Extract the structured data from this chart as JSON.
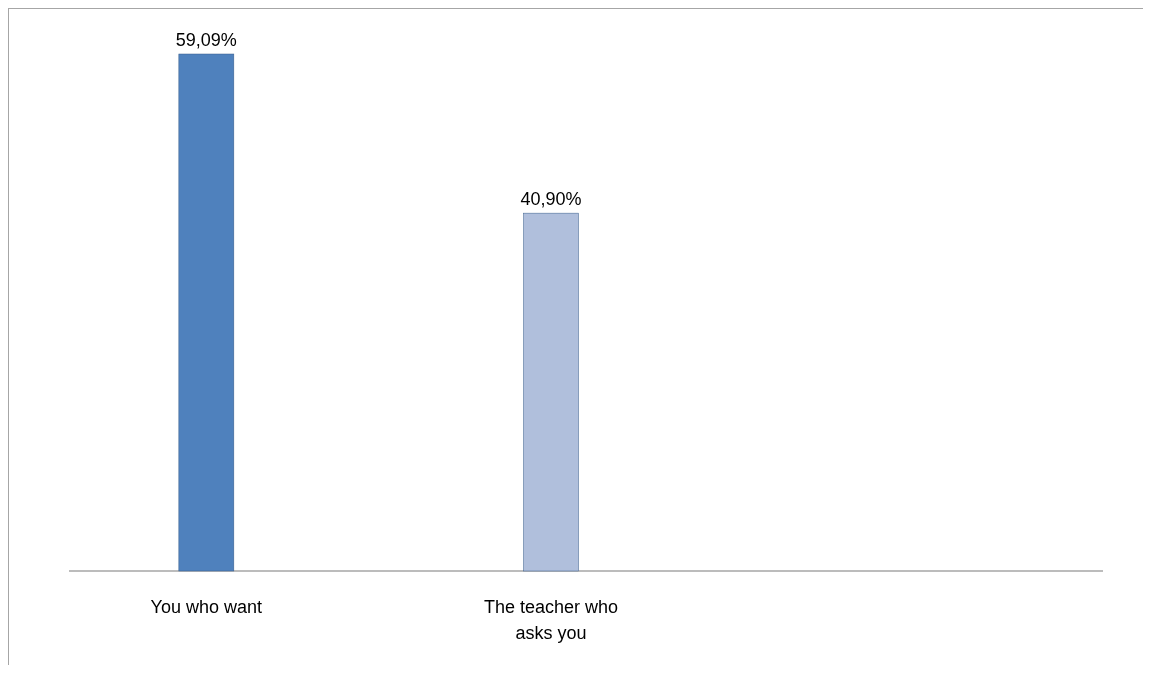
{
  "chart_data": {
    "type": "bar",
    "categories": [
      "You who want",
      "The teacher who asks you",
      null
    ],
    "values": [
      59.09,
      40.9,
      null
    ],
    "colors": [
      "#4f81bd",
      "#b0bfdc",
      null
    ],
    "value_labels": [
      "59,09%",
      "40,90%",
      null
    ]
  }
}
